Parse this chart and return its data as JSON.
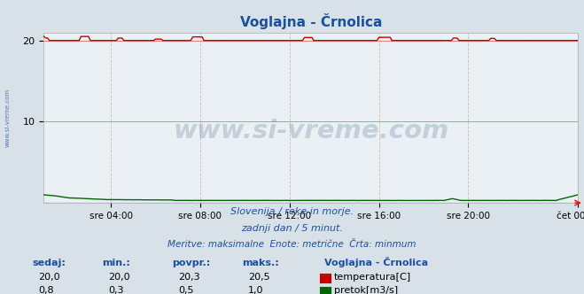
{
  "title": "Voglajna - Črnolica",
  "bg_color": "#d8e0e8",
  "plot_bg_color": "#eaf0f4",
  "grid_color_h": "#d08080",
  "grid_color_v": "#d09090",
  "ylim": [
    0,
    21
  ],
  "yticks": [
    10,
    20
  ],
  "xlim": [
    0,
    287
  ],
  "xtick_positions": [
    36,
    84,
    132,
    180,
    228,
    287
  ],
  "xtick_labels": [
    "sre 04:00",
    "sre 08:00",
    "sre 12:00",
    "sre 16:00",
    "sre 20:00",
    "čet 00:00"
  ],
  "temp_color": "#cc0000",
  "temp_dot_color": "#ee6666",
  "flow_color": "#006600",
  "blue_baseline": "#0000cc",
  "subtitle1": "Slovenija / reke in morje.",
  "subtitle2": "zadnji dan / 5 minut.",
  "subtitle3": "Meritve: maksimalne  Enote: metrične  Črta: minmum",
  "watermark": "www.si-vreme.com",
  "watermark_color": "#1a3a6a",
  "sidebar_text": "www.si-vreme.com",
  "text_color": "#1a50a0",
  "table_label_color": "#1a50a0",
  "table_headers": [
    "sedaj:",
    "min.:",
    "povpr.:",
    "maks.:"
  ],
  "table_temp": [
    "20,0",
    "20,0",
    "20,3",
    "20,5"
  ],
  "table_flow": [
    "0,8",
    "0,3",
    "0,5",
    "1,0"
  ],
  "legend_title": "Voglajna - Črnolica",
  "legend_temp": "temperatura[C]",
  "legend_flow": "pretok[m3/s]",
  "temp_icon_color": "#cc0000",
  "flow_icon_color": "#006600"
}
